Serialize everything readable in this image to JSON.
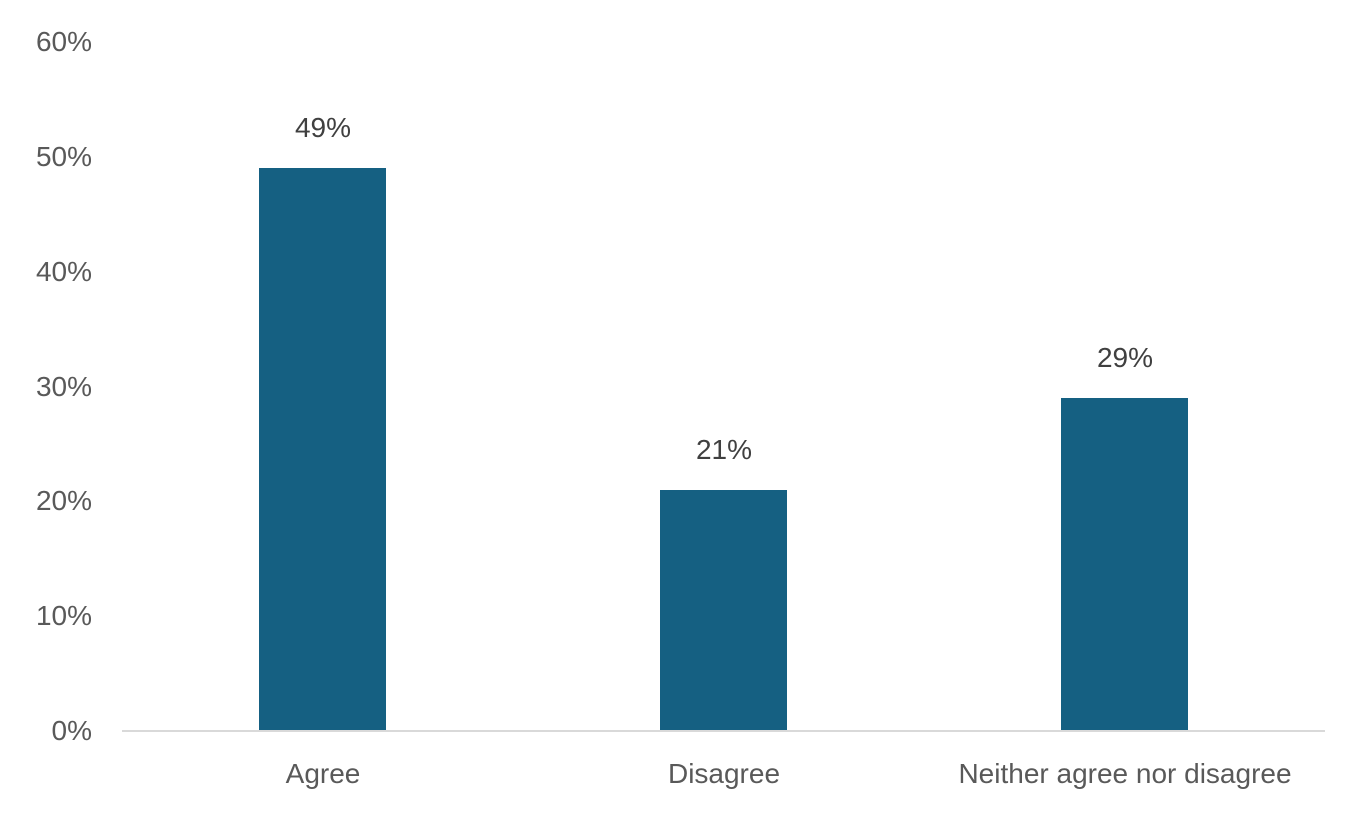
{
  "chart_data": {
    "type": "bar",
    "title": "",
    "xlabel": "",
    "ylabel": "",
    "categories": [
      "Agree",
      "Disagree",
      "Neither agree nor disagree"
    ],
    "values": [
      49,
      21,
      29
    ],
    "data_labels": [
      "49%",
      "21%",
      "29%"
    ],
    "ylim": [
      0,
      60
    ],
    "ytick_values": [
      0,
      10,
      20,
      30,
      40,
      50,
      60
    ],
    "ytick_labels": [
      "0%",
      "10%",
      "20%",
      "30%",
      "40%",
      "50%",
      "60%"
    ],
    "grid": false,
    "legend": "none",
    "bar_color": "#156082",
    "axis_line_color": "#d9d9d9",
    "tick_label_color": "#595959",
    "data_label_color": "#404040"
  }
}
